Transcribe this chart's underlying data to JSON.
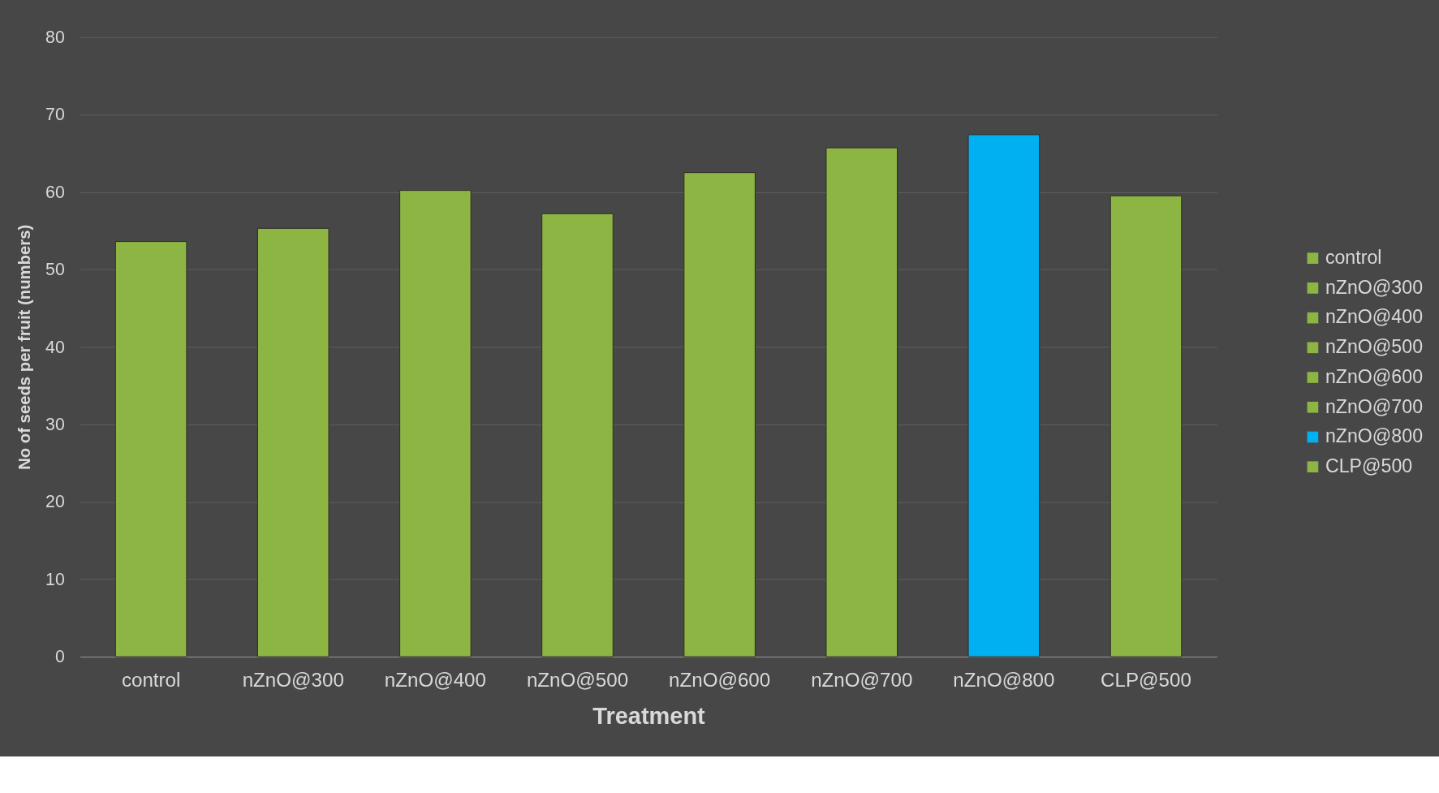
{
  "chart_data": {
    "type": "bar",
    "xlabel": "Treatment",
    "ylabel": "No of seeds per fruit (numbers)",
    "categories": [
      "control",
      "nZnO@300",
      "nZnO@400",
      "nZnO@500",
      "nZnO@600",
      "nZnO@700",
      "nZnO@800",
      "CLP@500"
    ],
    "series": [
      {
        "name": "control",
        "color": "#8db543",
        "values": [
          53.6,
          null,
          null,
          null,
          null,
          null,
          null,
          null
        ]
      },
      {
        "name": "nZnO@300",
        "color": "#8db543",
        "values": [
          null,
          55.3,
          null,
          null,
          null,
          null,
          null,
          null
        ]
      },
      {
        "name": "nZnO@400",
        "color": "#8db543",
        "values": [
          null,
          null,
          60.2,
          null,
          null,
          null,
          null,
          null
        ]
      },
      {
        "name": "nZnO@500",
        "color": "#8db543",
        "values": [
          null,
          null,
          null,
          57.2,
          null,
          null,
          null,
          null
        ]
      },
      {
        "name": "nZnO@600",
        "color": "#8db543",
        "values": [
          null,
          null,
          null,
          null,
          62.5,
          null,
          null,
          null
        ]
      },
      {
        "name": "nZnO@700",
        "color": "#8db543",
        "values": [
          null,
          null,
          null,
          null,
          null,
          65.7,
          null,
          null
        ]
      },
      {
        "name": "nZnO@800",
        "color": "#00b0f0",
        "values": [
          null,
          null,
          null,
          null,
          null,
          null,
          67.4,
          null
        ]
      },
      {
        "name": "CLP@500",
        "color": "#8db543",
        "values": [
          null,
          null,
          null,
          null,
          null,
          null,
          null,
          59.5
        ]
      }
    ],
    "ylim": [
      0,
      80
    ],
    "yticks": [
      0,
      10,
      20,
      30,
      40,
      50,
      60,
      70,
      80
    ],
    "grid": "y",
    "legend": "right"
  }
}
